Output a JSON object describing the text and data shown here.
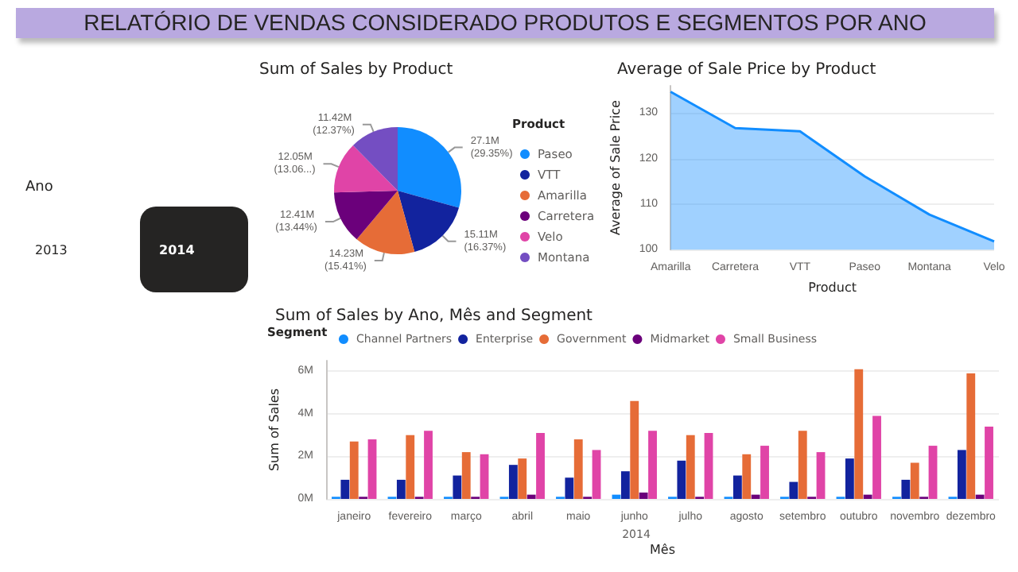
{
  "chart_data": [
    {
      "type": "other",
      "title": "RELATÓRIO DE VENDAS CONSIDERADO PRODUTOS E SEGMENTOS POR ANO",
      "subtitle": "Ano",
      "annotations": [
        "2013",
        "2014"
      ]
    },
    {
      "type": "pie",
      "title": "Sum of Sales by Product",
      "legend_title": "Product",
      "legend": "right",
      "categories": [
        "Paseo",
        "VTT",
        "Amarilla",
        "Carretera",
        "Velo",
        "Montana"
      ],
      "values": [
        29.35,
        16.37,
        15.41,
        13.44,
        13.06,
        12.37
      ],
      "value_labels": [
        "27.1M (29.35%)",
        "15.11M (16.37%)",
        "14.23M (15.41%)",
        "12.41M (13.44%)",
        "12.05M (13.06...)",
        "11.42M (12.37%)"
      ],
      "colors": [
        "#118dff",
        "#12239e",
        "#e66c37",
        "#6b007b",
        "#e044a7",
        "#744ec2"
      ]
    },
    {
      "type": "area",
      "title": "Average of Sale Price by Product",
      "xlabel": "Product",
      "ylabel": "Average of Sale Price",
      "categories": [
        "Amarilla",
        "Carretera",
        "VTT",
        "Paseo",
        "Montana",
        "Velo"
      ],
      "series": [
        {
          "color": "#118dff",
          "values": [
            134.7,
            126.7,
            126.0,
            116.1,
            107.7,
            101.8
          ]
        }
      ],
      "ylim": [
        100,
        136
      ],
      "yticks": [
        100,
        110,
        120,
        130
      ],
      "grid": "y",
      "legend": false
    },
    {
      "type": "bar",
      "title": "Sum of Sales by Ano, Mês and Segment",
      "xlabel": "Mês",
      "ylabel": "Sum of Sales",
      "legend_title": "Segment",
      "legend": "top left",
      "annotations": [
        "2014"
      ],
      "categories": [
        "janeiro",
        "fevereiro",
        "março",
        "abril",
        "maio",
        "junho",
        "julho",
        "agosto",
        "setembro",
        "outubro",
        "novembro",
        "dezembro"
      ],
      "series": [
        {
          "name": "Channel Partners",
          "color": "#118dff",
          "values": [
            0.1,
            0.1,
            0.1,
            0.1,
            0.1,
            0.2,
            0.1,
            0.1,
            0.1,
            0.1,
            0.1,
            0.1
          ]
        },
        {
          "name": "Enterprise",
          "color": "#12239e",
          "values": [
            0.9,
            0.9,
            1.1,
            1.6,
            1.0,
            1.3,
            1.8,
            1.1,
            0.8,
            1.9,
            0.9,
            2.3
          ]
        },
        {
          "name": "Government",
          "color": "#e66c37",
          "values": [
            2.7,
            3.0,
            2.2,
            1.9,
            2.8,
            4.6,
            3.0,
            2.1,
            3.2,
            6.1,
            1.7,
            5.9
          ]
        },
        {
          "name": "Midmarket",
          "color": "#6b007b",
          "values": [
            0.1,
            0.1,
            0.1,
            0.2,
            0.1,
            0.3,
            0.1,
            0.2,
            0.1,
            0.2,
            0.1,
            0.2
          ]
        },
        {
          "name": "Small Business",
          "color": "#e044a7",
          "values": [
            2.8,
            3.2,
            2.1,
            3.1,
            2.3,
            3.2,
            3.1,
            2.5,
            2.2,
            3.9,
            2.5,
            3.4
          ]
        }
      ],
      "ylim": [
        0,
        6.5
      ],
      "yticks": [
        {
          "value": 0,
          "label": "0M"
        },
        {
          "value": 2,
          "label": "2M"
        },
        {
          "value": 4,
          "label": "4M"
        },
        {
          "value": 6,
          "label": "6M"
        }
      ],
      "grid": "y"
    }
  ]
}
